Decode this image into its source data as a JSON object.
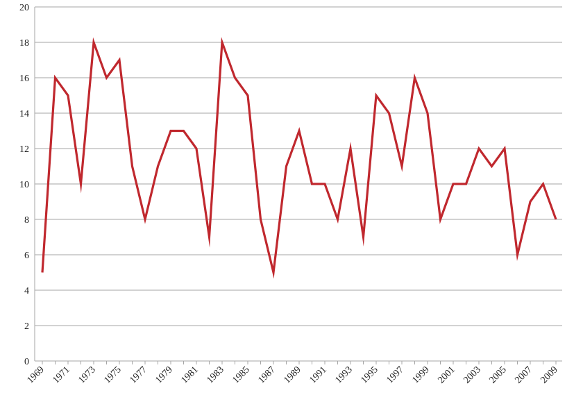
{
  "chart_data": {
    "type": "line",
    "title": "",
    "xlabel": "",
    "ylabel": "",
    "ylim": [
      0,
      20
    ],
    "yticks": [
      0,
      2,
      4,
      6,
      8,
      10,
      12,
      14,
      16,
      18,
      20
    ],
    "x": [
      1969,
      1970,
      1971,
      1972,
      1973,
      1974,
      1975,
      1976,
      1977,
      1978,
      1979,
      1980,
      1981,
      1982,
      1983,
      1984,
      1985,
      1986,
      1987,
      1988,
      1989,
      1990,
      1991,
      1992,
      1993,
      1994,
      1995,
      1996,
      1997,
      1998,
      1999,
      2000,
      2001,
      2002,
      2003,
      2004,
      2005,
      2006,
      2007,
      2008,
      2009
    ],
    "xtick_labels": [
      "1969",
      "1971",
      "1973",
      "1975",
      "1977",
      "1979",
      "1981",
      "1983",
      "1985",
      "1987",
      "1989",
      "1991",
      "1993",
      "1995",
      "1997",
      "1999",
      "2001",
      "2003",
      "2005",
      "2007",
      "2009"
    ],
    "grid": true,
    "legend": "none",
    "series": [
      {
        "color": "#c0282e",
        "values": [
          5,
          16,
          15,
          10,
          18,
          16,
          17,
          11,
          8,
          11,
          13,
          13,
          12,
          7,
          18,
          16,
          15,
          8,
          5,
          11,
          13,
          10,
          10,
          8,
          12,
          7,
          15,
          14,
          11,
          16,
          14,
          8,
          10,
          10,
          12,
          11,
          12,
          6,
          9,
          10,
          8
        ]
      }
    ]
  }
}
